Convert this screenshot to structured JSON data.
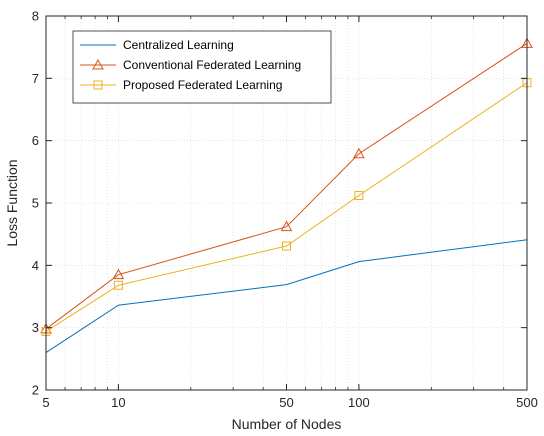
{
  "chart_data": {
    "type": "line",
    "xscale": "log",
    "x": [
      5,
      10,
      50,
      100,
      500
    ],
    "xticks": [
      5,
      10,
      50,
      100,
      500
    ],
    "xlim": [
      5,
      500
    ],
    "ylim": [
      2,
      8
    ],
    "yticks": [
      2,
      3,
      4,
      5,
      6,
      7,
      8
    ],
    "xlabel": "Number of Nodes",
    "ylabel": "Loss Function",
    "grid": true,
    "legend_position": "top-left",
    "series": [
      {
        "name": "Centralized Learning",
        "values": [
          2.6,
          3.36,
          3.69,
          4.06,
          4.41
        ],
        "color": "#0072BD",
        "marker": "none"
      },
      {
        "name": "Conventional Federated Learning",
        "values": [
          2.98,
          3.85,
          4.62,
          5.79,
          7.56
        ],
        "color": "#D95319",
        "marker": "triangle"
      },
      {
        "name": "Proposed Federated Learning",
        "values": [
          2.94,
          3.68,
          4.31,
          5.12,
          6.93
        ],
        "color": "#EDB120",
        "marker": "square"
      }
    ]
  }
}
